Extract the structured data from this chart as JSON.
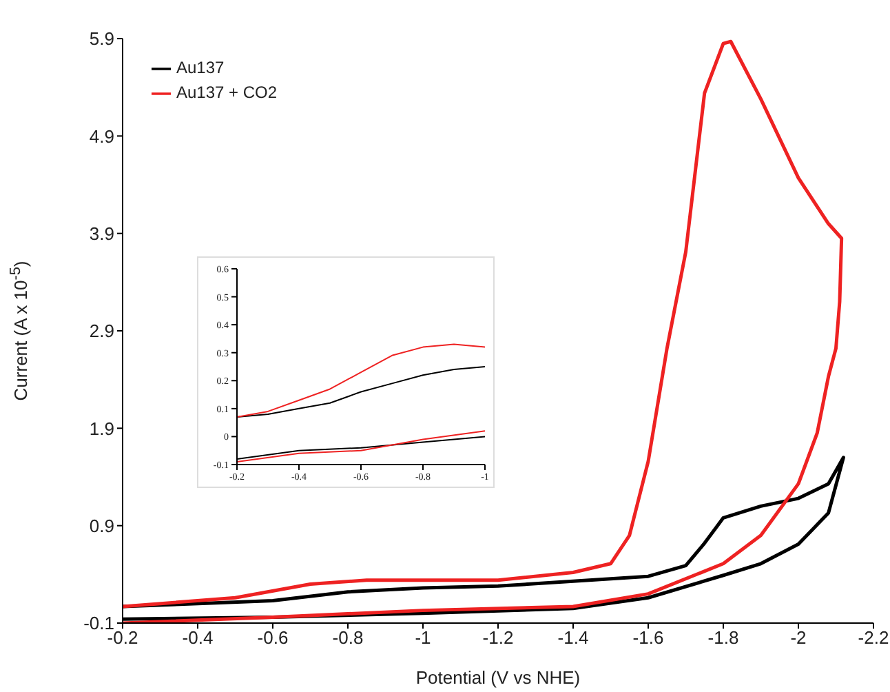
{
  "chart_data": [
    {
      "type": "line",
      "xlabel": "Potential (V vs NHE)",
      "ylabel": "Current (A x 10$^{-5}$)",
      "xlim": [
        -0.2,
        -2.2
      ],
      "xticks": [
        -0.2,
        -0.4,
        -0.6,
        -0.8,
        -1,
        -1.2,
        -1.4,
        -1.6,
        -1.8,
        -2,
        -2.2
      ],
      "ylim": [
        -0.1,
        5.9
      ],
      "yticks": [
        -0.1,
        0.9,
        1.9,
        2.9,
        3.9,
        4.9,
        5.9
      ],
      "legend": "top left",
      "series": [
        {
          "name": "Au137",
          "color": "#000000",
          "x": [
            -0.2,
            -0.6,
            -1.0,
            -1.4,
            -1.6,
            -1.8,
            -1.9,
            -2.0,
            -2.08,
            -2.12,
            -2.08,
            -2.0,
            -1.9,
            -1.8,
            -1.75,
            -1.7,
            -1.6,
            -1.4,
            -1.2,
            -1.0,
            -0.8,
            -0.6,
            -0.4,
            -0.2
          ],
          "values": [
            -0.06,
            -0.04,
            0.0,
            0.05,
            0.16,
            0.39,
            0.51,
            0.71,
            1.03,
            1.6,
            1.33,
            1.18,
            1.1,
            0.98,
            0.72,
            0.49,
            0.38,
            0.33,
            0.28,
            0.26,
            0.22,
            0.13,
            0.1,
            0.07
          ]
        },
        {
          "name": "Au137 + CO2",
          "color": "#ee2222",
          "x": [
            -0.2,
            -0.6,
            -1.0,
            -1.4,
            -1.6,
            -1.8,
            -1.9,
            -2.0,
            -2.05,
            -2.08,
            -2.1,
            -2.11,
            -2.115,
            -2.08,
            -2.0,
            -1.9,
            -1.82,
            -1.8,
            -1.75,
            -1.7,
            -1.65,
            -1.6,
            -1.55,
            -1.5,
            -1.4,
            -1.2,
            -0.85,
            -0.7,
            -0.5,
            -0.2
          ],
          "values": [
            -0.1,
            -0.04,
            0.03,
            0.07,
            0.2,
            0.51,
            0.8,
            1.33,
            1.85,
            2.43,
            2.72,
            3.2,
            3.85,
            4.0,
            4.47,
            5.28,
            5.87,
            5.85,
            5.34,
            3.71,
            2.72,
            1.56,
            0.8,
            0.51,
            0.42,
            0.34,
            0.34,
            0.3,
            0.16,
            0.07
          ]
        }
      ]
    },
    {
      "type": "line",
      "xlim": [
        -0.2,
        -1
      ],
      "xticks": [
        -0.2,
        -0.4,
        -0.6,
        -0.8,
        -1
      ],
      "ylim": [
        -0.1,
        0.6
      ],
      "yticks": [
        -0.1,
        0,
        0.1,
        0.2,
        0.3,
        0.4,
        0.5,
        0.6
      ],
      "series": [
        {
          "color": "#000000",
          "x": [
            -0.2,
            -0.4,
            -0.6,
            -0.8,
            -1
          ],
          "values": [
            -0.08,
            -0.05,
            -0.04,
            -0.02,
            0.0
          ]
        },
        {
          "color": "#000000",
          "x": [
            -1,
            -0.9,
            -0.8,
            -0.7,
            -0.6,
            -0.5,
            -0.4,
            -0.3,
            -0.2
          ],
          "values": [
            0.25,
            0.24,
            0.22,
            0.19,
            0.16,
            0.12,
            0.1,
            0.08,
            0.07
          ]
        },
        {
          "color": "#ee2222",
          "x": [
            -0.2,
            -0.4,
            -0.6,
            -0.8,
            -1
          ],
          "values": [
            -0.09,
            -0.06,
            -0.05,
            -0.01,
            0.02
          ]
        },
        {
          "color": "#ee2222",
          "x": [
            -1,
            -0.9,
            -0.8,
            -0.7,
            -0.6,
            -0.5,
            -0.4,
            -0.3,
            -0.2
          ],
          "values": [
            0.32,
            0.33,
            0.32,
            0.29,
            0.23,
            0.17,
            0.13,
            0.09,
            0.07
          ]
        }
      ]
    }
  ]
}
